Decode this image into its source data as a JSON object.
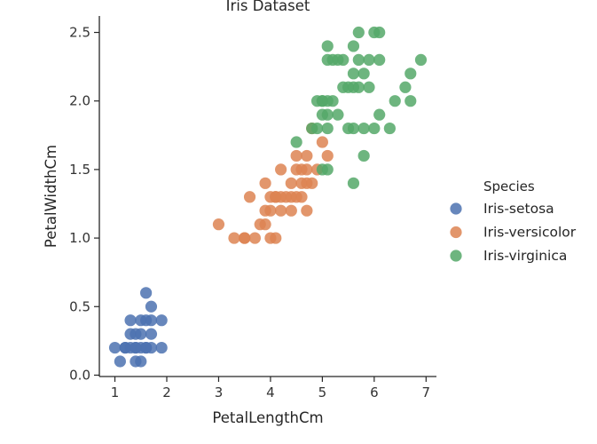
{
  "chart_data": {
    "type": "scatter",
    "title": "Iris Dataset",
    "xlabel": "PetalLengthCm",
    "ylabel": "PetalWidthCm",
    "xlim": [
      0.7,
      7.2
    ],
    "ylim": [
      -0.01,
      2.62
    ],
    "x_ticks": [
      1,
      2,
      3,
      4,
      5,
      6,
      7
    ],
    "y_ticks": [
      0.0,
      0.5,
      1.0,
      1.5,
      2.0,
      2.5
    ],
    "x_tick_labels": [
      "1",
      "2",
      "3",
      "4",
      "5",
      "6",
      "7"
    ],
    "y_tick_labels": [
      "0.0",
      "0.5",
      "1.0",
      "1.5",
      "2.0",
      "2.5"
    ],
    "grid": false,
    "legend": {
      "title": "Species",
      "placement": "right"
    },
    "series": [
      {
        "name": "Iris-setosa",
        "color": "#4c72b0",
        "points": [
          [
            1.0,
            0.2
          ],
          [
            1.1,
            0.1
          ],
          [
            1.2,
            0.2
          ],
          [
            1.3,
            0.2
          ],
          [
            1.3,
            0.3
          ],
          [
            1.3,
            0.4
          ],
          [
            1.4,
            0.2
          ],
          [
            1.4,
            0.3
          ],
          [
            1.4,
            0.1
          ],
          [
            1.5,
            0.2
          ],
          [
            1.5,
            0.4
          ],
          [
            1.5,
            0.1
          ],
          [
            1.5,
            0.3
          ],
          [
            1.6,
            0.2
          ],
          [
            1.6,
            0.4
          ],
          [
            1.6,
            0.6
          ],
          [
            1.7,
            0.2
          ],
          [
            1.7,
            0.3
          ],
          [
            1.7,
            0.4
          ],
          [
            1.7,
            0.5
          ],
          [
            1.9,
            0.2
          ],
          [
            1.9,
            0.4
          ],
          [
            1.6,
            0.2
          ],
          [
            1.4,
            0.2
          ],
          [
            1.2,
            0.2
          ]
        ]
      },
      {
        "name": "Iris-versicolor",
        "color": "#dd8452",
        "points": [
          [
            3.0,
            1.1
          ],
          [
            3.3,
            1.0
          ],
          [
            3.5,
            1.0
          ],
          [
            3.6,
            1.3
          ],
          [
            3.7,
            1.0
          ],
          [
            3.8,
            1.1
          ],
          [
            3.9,
            1.1
          ],
          [
            3.9,
            1.2
          ],
          [
            3.9,
            1.4
          ],
          [
            4.0,
            1.0
          ],
          [
            4.0,
            1.2
          ],
          [
            4.0,
            1.3
          ],
          [
            4.1,
            1.0
          ],
          [
            4.1,
            1.3
          ],
          [
            4.2,
            1.2
          ],
          [
            4.2,
            1.3
          ],
          [
            4.2,
            1.5
          ],
          [
            4.3,
            1.3
          ],
          [
            4.4,
            1.2
          ],
          [
            4.4,
            1.3
          ],
          [
            4.4,
            1.4
          ],
          [
            4.5,
            1.3
          ],
          [
            4.5,
            1.5
          ],
          [
            4.5,
            1.6
          ],
          [
            4.6,
            1.3
          ],
          [
            4.6,
            1.4
          ],
          [
            4.6,
            1.5
          ],
          [
            4.7,
            1.2
          ],
          [
            4.7,
            1.4
          ],
          [
            4.7,
            1.5
          ],
          [
            4.7,
            1.6
          ],
          [
            4.8,
            1.4
          ],
          [
            4.8,
            1.8
          ],
          [
            4.9,
            1.5
          ],
          [
            5.0,
            1.7
          ],
          [
            5.1,
            1.6
          ],
          [
            3.5,
            1.0
          ],
          [
            4.1,
            1.3
          ]
        ]
      },
      {
        "name": "Iris-virginica",
        "color": "#55a868",
        "points": [
          [
            4.5,
            1.7
          ],
          [
            4.8,
            1.8
          ],
          [
            4.9,
            1.8
          ],
          [
            5.0,
            1.5
          ],
          [
            5.0,
            1.9
          ],
          [
            5.0,
            2.0
          ],
          [
            5.1,
            1.5
          ],
          [
            5.1,
            1.8
          ],
          [
            5.1,
            1.9
          ],
          [
            5.1,
            2.0
          ],
          [
            5.1,
            2.3
          ],
          [
            5.1,
            2.4
          ],
          [
            5.2,
            2.0
          ],
          [
            5.2,
            2.3
          ],
          [
            5.3,
            1.9
          ],
          [
            5.3,
            2.3
          ],
          [
            5.4,
            2.1
          ],
          [
            5.4,
            2.3
          ],
          [
            5.5,
            1.8
          ],
          [
            5.5,
            2.1
          ],
          [
            5.6,
            1.4
          ],
          [
            5.6,
            1.8
          ],
          [
            5.6,
            2.1
          ],
          [
            5.6,
            2.2
          ],
          [
            5.6,
            2.4
          ],
          [
            5.7,
            2.1
          ],
          [
            5.7,
            2.3
          ],
          [
            5.7,
            2.5
          ],
          [
            5.8,
            1.6
          ],
          [
            5.8,
            1.8
          ],
          [
            5.8,
            2.2
          ],
          [
            5.9,
            2.1
          ],
          [
            5.9,
            2.3
          ],
          [
            6.0,
            1.8
          ],
          [
            6.0,
            2.5
          ],
          [
            6.1,
            1.9
          ],
          [
            6.1,
            2.3
          ],
          [
            6.1,
            2.5
          ],
          [
            6.3,
            1.8
          ],
          [
            6.4,
            2.0
          ],
          [
            6.6,
            2.1
          ],
          [
            6.7,
            2.0
          ],
          [
            6.7,
            2.2
          ],
          [
            6.9,
            2.3
          ],
          [
            4.9,
            2.0
          ],
          [
            5.0,
            2.0
          ]
        ]
      }
    ]
  }
}
